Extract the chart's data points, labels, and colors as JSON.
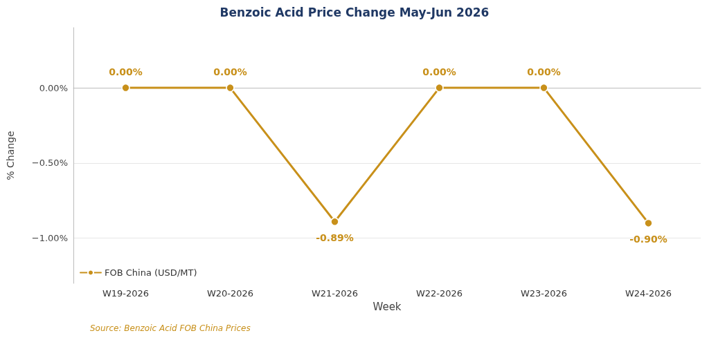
{
  "chart_data": {
    "type": "line",
    "title": "Benzoic Acid Price Change May-Jun 2026",
    "xlabel": "Week",
    "ylabel": "% Change",
    "categories": [
      "W19-2026",
      "W20-2026",
      "W21-2026",
      "W22-2026",
      "W23-2026",
      "W24-2026"
    ],
    "series": [
      {
        "name": "FOB China (USD/MT)",
        "color": "#c8901a",
        "values": [
          0,
          0,
          -0.89,
          0,
          0,
          -0.9
        ],
        "value_labels": [
          "0.00%",
          "0.00%",
          "-0.89%",
          "0.00%",
          "0.00%",
          "-0.90%"
        ]
      }
    ],
    "ylim": [
      -1.3,
      0.4
    ],
    "yticks": [
      {
        "value": -1,
        "label": "−1.00%"
      },
      {
        "value": -0.5,
        "label": "−0.50%"
      },
      {
        "value": 0,
        "label": "0.00%"
      }
    ],
    "grid": "y",
    "legend": "bottom left",
    "marker": "circle",
    "line_style": "solid",
    "annotations": [
      "Source: Benzoic Acid FOB China Prices"
    ]
  }
}
